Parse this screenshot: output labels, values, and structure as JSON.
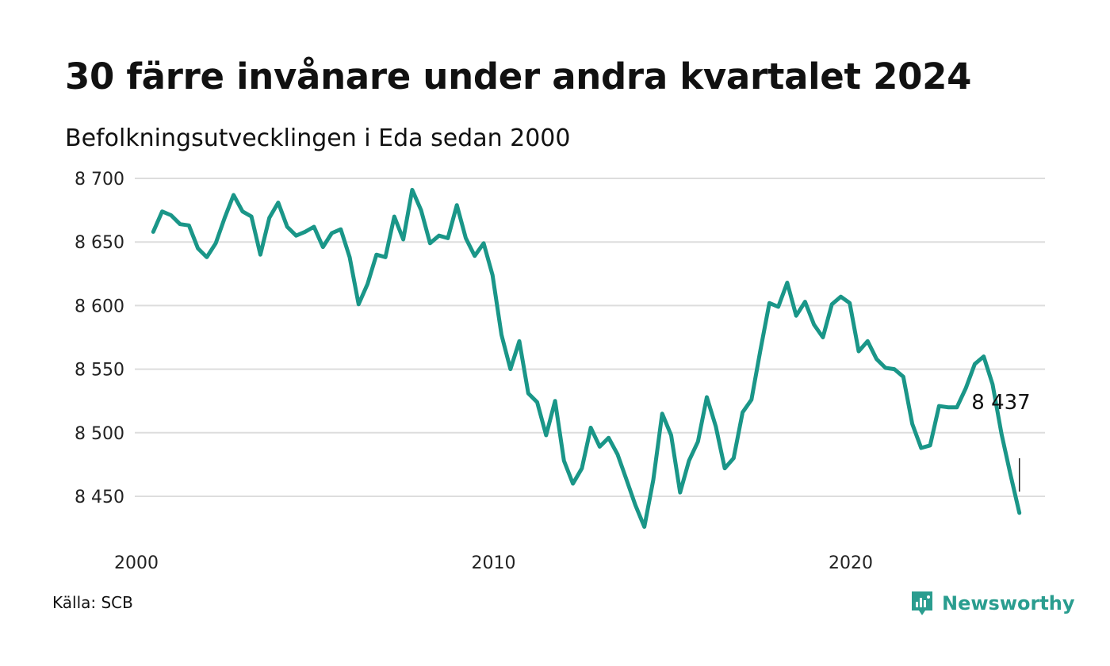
{
  "title": "30 färre invånare under andra kvartalet 2024",
  "subtitle": "Befolkningsutvecklingen i Eda sedan 2000",
  "source": "Källa: SCB",
  "brand": {
    "name": "Newsworthy",
    "icon": "newsworthy-logo-icon",
    "color": "#2a9d8f"
  },
  "chart_data": {
    "type": "line",
    "title": "30 färre invånare under andra kvartalet 2024",
    "subtitle": "Befolkningsutvecklingen i Eda sedan 2000",
    "xlabel": "",
    "ylabel": "",
    "x_ticks": [
      2000,
      2010,
      2020
    ],
    "x_tick_labels": [
      "2000",
      "2010",
      "2020"
    ],
    "y_ticks": [
      8450,
      8500,
      8550,
      8600,
      8650,
      8700
    ],
    "y_tick_labels": [
      "8 450",
      "8 500",
      "8 550",
      "8 600",
      "8 650",
      "8 700"
    ],
    "xlim": [
      2000,
      2024.8
    ],
    "ylim": [
      8424,
      8702
    ],
    "grid": true,
    "line_color": "#1a9688",
    "end_label": "8 437",
    "x": [
      2000.25,
      2000.5,
      2000.75,
      2001,
      2001.25,
      2001.5,
      2001.75,
      2002,
      2002.25,
      2002.5,
      2002.75,
      2003,
      2003.25,
      2003.5,
      2003.75,
      2004,
      2004.25,
      2004.5,
      2004.75,
      2005,
      2005.25,
      2005.5,
      2005.75,
      2006,
      2006.25,
      2006.5,
      2006.75,
      2007,
      2007.25,
      2007.5,
      2007.75,
      2008,
      2008.25,
      2008.5,
      2008.75,
      2009,
      2009.25,
      2009.5,
      2009.75,
      2010,
      2010.25,
      2010.5,
      2010.75,
      2011,
      2011.25,
      2011.5,
      2011.75,
      2012,
      2012.25,
      2012.5,
      2012.75,
      2013,
      2013.25,
      2013.5,
      2013.75,
      2014,
      2014.25,
      2014.5,
      2014.75,
      2015,
      2015.25,
      2015.5,
      2015.75,
      2016,
      2016.25,
      2016.5,
      2016.75,
      2017,
      2017.25,
      2017.5,
      2017.75,
      2018,
      2018.25,
      2018.5,
      2018.75,
      2019,
      2019.25,
      2019.5,
      2019.75,
      2020,
      2020.25,
      2020.5,
      2020.75,
      2021,
      2021.25,
      2021.5,
      2021.75,
      2022,
      2022.25,
      2022.5,
      2022.75,
      2023,
      2023.25,
      2023.5,
      2023.75,
      2024,
      2024.25,
      2024.5
    ],
    "series": [
      {
        "values": [
          8658,
          8674,
          8671,
          8664,
          8663,
          8645,
          8638,
          8649,
          8669,
          8687,
          8674,
          8670,
          8640,
          8669,
          8681,
          8662,
          8655,
          8658,
          8662,
          8646,
          8657,
          8660,
          8638,
          8601,
          8617,
          8640,
          8638,
          8670,
          8652,
          8691,
          8675,
          8649,
          8655,
          8653,
          8679,
          8653,
          8639,
          8649,
          8624,
          8577,
          8550,
          8572,
          8531,
          8524,
          8498,
          8525,
          8478,
          8460,
          8472,
          8504,
          8489,
          8496,
          8483,
          8463,
          8443,
          8426,
          8463,
          8515,
          8498,
          8453,
          8478,
          8493,
          8528,
          8505,
          8472,
          8480,
          8516,
          8526,
          8565,
          8602,
          8599,
          8618,
          8592,
          8603,
          8585,
          8575,
          8601,
          8607,
          8602,
          8564,
          8572,
          8558,
          8551,
          8550,
          8544,
          8507,
          8488,
          8490,
          8521,
          8520,
          8520,
          8535,
          8554,
          8560,
          8538,
          8499,
          8467,
          8437
        ]
      }
    ]
  }
}
